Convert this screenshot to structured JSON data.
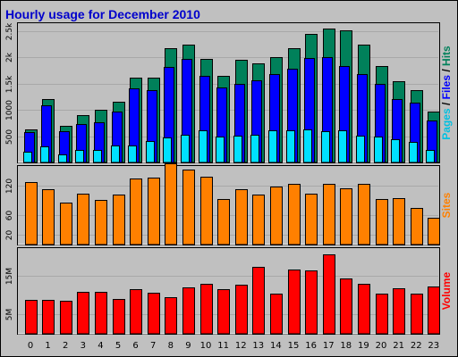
{
  "chart_data": {
    "type": "bar",
    "title": "Hourly usage for December 2010",
    "colors": {
      "background": "#c0c0c0",
      "plot_background": "#ffffff",
      "hits": "#00805a",
      "files": "#0000ff",
      "pages": "#00e0ff",
      "sites": "#ff8000",
      "volume": "#ff0000"
    },
    "x": [
      "0",
      "1",
      "2",
      "3",
      "4",
      "5",
      "6",
      "7",
      "8",
      "9",
      "10",
      "11",
      "12",
      "13",
      "14",
      "15",
      "16",
      "17",
      "18",
      "19",
      "20",
      "21",
      "22",
      "23"
    ],
    "panels": [
      {
        "name": "pages-files-hits",
        "ylim": [
          0,
          2650
        ],
        "ticks": [
          {
            "value": 500,
            "label": "500"
          },
          {
            "value": 1000,
            "label": "1000"
          },
          {
            "value": 1500,
            "label": "1.5k"
          },
          {
            "value": 2000,
            "label": "2k"
          },
          {
            "value": 2500,
            "label": "2.5k"
          }
        ],
        "label_parts": [
          {
            "text": "Pages",
            "color": "#00c0e0"
          },
          {
            "text": " / ",
            "color": "#000000"
          },
          {
            "text": "Files",
            "color": "#0000ff"
          },
          {
            "text": " / ",
            "color": "#000000"
          },
          {
            "text": "Hits",
            "color": "#00805a"
          }
        ],
        "series": [
          {
            "key": "hits",
            "values": [
              630,
              1200,
              700,
              900,
              1010,
              1160,
              1620,
              1620,
              2180,
              2240,
              1970,
              1640,
              1960,
              1880,
              2000,
              2170,
              2450,
              2540,
              2510,
              2250,
              1840,
              1540,
              1380,
              960
            ]
          },
          {
            "key": "files",
            "values": [
              580,
              1080,
              590,
              730,
              770,
              970,
              1410,
              1370,
              1820,
              1970,
              1650,
              1420,
              1500,
              1570,
              1690,
              1780,
              1990,
              2000,
              1840,
              1690,
              1500,
              1200,
              1130,
              790
            ]
          },
          {
            "key": "pages",
            "values": [
              200,
              310,
              160,
              230,
              230,
              320,
              330,
              410,
              480,
              520,
              610,
              490,
              510,
              520,
              610,
              620,
              630,
              600,
              620,
              510,
              490,
              450,
              390,
              240
            ]
          }
        ]
      },
      {
        "name": "sites",
        "ylim": [
          0,
          160
        ],
        "ticks": [
          {
            "value": 20,
            "label": "20"
          },
          {
            "value": 60,
            "label": "60"
          },
          {
            "value": 120,
            "label": "120"
          }
        ],
        "label_parts": [
          {
            "text": "Sites",
            "color": "#ff8000"
          }
        ],
        "series": [
          {
            "key": "sites",
            "values": [
              128,
              112,
              86,
              104,
              91,
              101,
              134,
              137,
              165,
              153,
              139,
              92,
              112,
              102,
              119,
              123,
              103,
              124,
              115,
              123,
              93,
              94,
              74,
              55
            ]
          }
        ]
      },
      {
        "name": "volume",
        "ylim": [
          0,
          22
        ],
        "ticks": [
          {
            "value": 5,
            "label": "5M"
          },
          {
            "value": 15,
            "label": "15M"
          }
        ],
        "label_parts": [
          {
            "text": "Volume",
            "color": "#ff0000"
          }
        ],
        "series": [
          {
            "key": "volume",
            "values": [
              8.8,
              8.6,
              8.5,
              10.8,
              10.8,
              8.9,
              11.5,
              10.6,
              9.4,
              11.9,
              12.8,
              11.4,
              12.6,
              17.3,
              10.3,
              16.5,
              16.2,
              20.5,
              14.3,
              12.8,
              10.4,
              11.6,
              10.2,
              12.2
            ]
          }
        ]
      }
    ]
  }
}
